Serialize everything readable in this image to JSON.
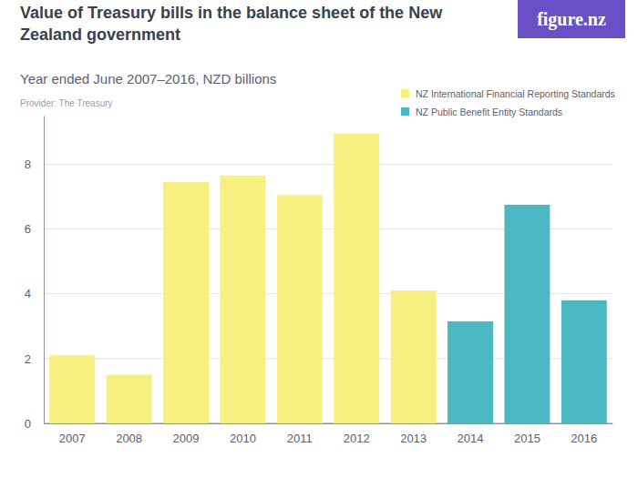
{
  "chart_data": {
    "type": "bar",
    "title": "Value of Treasury bills in the balance sheet of the New Zealand government",
    "subtitle": "Year ended June 2007–2016, NZD billions",
    "provider": "Provider: The Treasury",
    "logo": "figure.nz",
    "categories": [
      "2007",
      "2008",
      "2009",
      "2010",
      "2011",
      "2012",
      "2013",
      "2014",
      "2015",
      "2016"
    ],
    "series": [
      {
        "name": "NZ International Financial Reporting Standards",
        "color": "#f7ef80",
        "values": [
          2.1,
          1.5,
          7.45,
          7.65,
          7.05,
          8.95,
          4.1,
          null,
          null,
          null
        ]
      },
      {
        "name": "NZ Public Benefit Entity Standards",
        "color": "#4cb8c4",
        "values": [
          null,
          null,
          null,
          null,
          null,
          null,
          null,
          3.15,
          6.75,
          3.8
        ]
      }
    ],
    "ylim": [
      0,
      9.5
    ],
    "yticks": [
      0,
      2,
      4,
      6,
      8
    ],
    "grid": true,
    "legend": "top-right"
  }
}
